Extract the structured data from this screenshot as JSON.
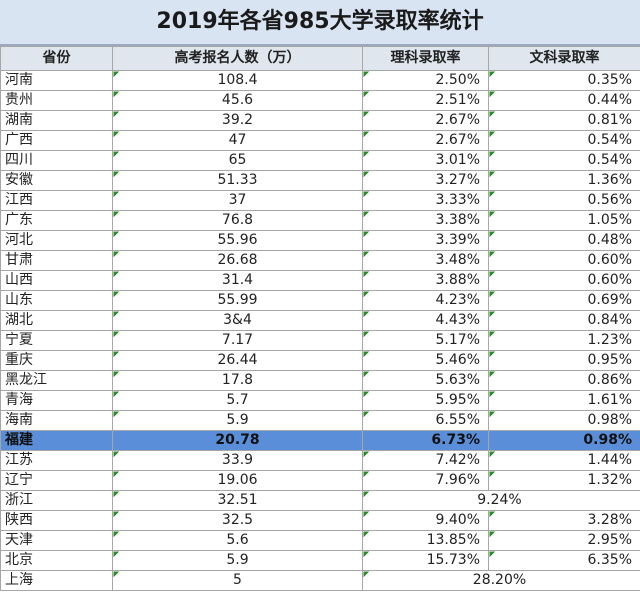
{
  "header": {
    "title": "2019年各省985大学录取率统计"
  },
  "table": {
    "columns": [
      "省份",
      "高考报名人数（万）",
      "理科录取率",
      "文科录取率"
    ],
    "highlight_row": 18,
    "rows": [
      [
        "河南",
        "108.4",
        "2.50%",
        "0.35%"
      ],
      [
        "贵州",
        "45.6",
        "2.51%",
        "0.44%"
      ],
      [
        "湖南",
        "39.2",
        "2.67%",
        "0.81%"
      ],
      [
        "广西",
        "47",
        "2.67%",
        "0.54%"
      ],
      [
        "四川",
        "65",
        "3.01%",
        "0.54%"
      ],
      [
        "安徽",
        "51.33",
        "3.27%",
        "1.36%"
      ],
      [
        "江西",
        "37",
        "3.33%",
        "0.56%"
      ],
      [
        "广东",
        "76.8",
        "3.38%",
        "1.05%"
      ],
      [
        "河北",
        "55.96",
        "3.39%",
        "0.48%"
      ],
      [
        "甘肃",
        "26.68",
        "3.48%",
        "0.60%"
      ],
      [
        "山西",
        "31.4",
        "3.88%",
        "0.60%"
      ],
      [
        "山东",
        "55.99",
        "4.23%",
        "0.69%"
      ],
      [
        "湖北",
        "3&4",
        "4.43%",
        "0.84%"
      ],
      [
        "宁夏",
        "7.17",
        "5.17%",
        "1.23%"
      ],
      [
        "重庆",
        "26.44",
        "5.46%",
        "0.95%"
      ],
      [
        "黑龙江",
        "17.8",
        "5.63%",
        "0.86%"
      ],
      [
        "青海",
        "5.7",
        "5.95%",
        "1.61%"
      ],
      [
        "海南",
        "5.9",
        "6.55%",
        "0.98%"
      ],
      [
        "福建",
        "20.78",
        "6.73%",
        "0.98%"
      ],
      [
        "江苏",
        "33.9",
        "7.42%",
        "1.44%"
      ],
      [
        "辽宁",
        "19.06",
        "7.96%",
        "1.32%"
      ],
      [
        "浙江",
        "32.51",
        "9.24%"
      ],
      [
        "陕西",
        "32.5",
        "9.40%",
        "3.28%"
      ],
      [
        "天津",
        "5.6",
        "13.85%",
        "2.95%"
      ],
      [
        "北京",
        "5.9",
        "15.73%",
        "6.35%"
      ],
      [
        "上海",
        "5",
        "28.20%"
      ]
    ]
  }
}
